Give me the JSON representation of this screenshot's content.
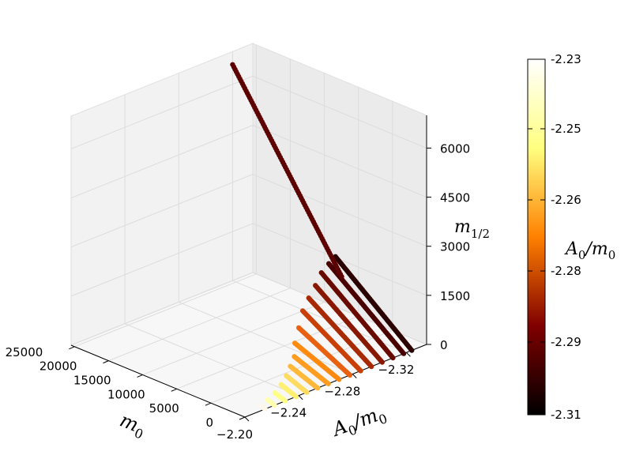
{
  "chart_data": {
    "type": "scatter",
    "projection": "3d",
    "x_axis": {
      "label_base": "m",
      "label_sub": "0",
      "ticks": [
        "25000",
        "20000",
        "15000",
        "10000",
        "5000",
        "0"
      ],
      "range": [
        0,
        25000
      ]
    },
    "y_axis": {
      "label_base": "A",
      "label_sub": "0",
      "label_tail": "/m",
      "label_tail_sub": "0",
      "ticks": [
        "−2.20",
        "−2.24",
        "−2.28",
        "−2.32"
      ],
      "range": [
        -2.2,
        -2.33
      ]
    },
    "z_axis": {
      "label_base": "m",
      "label_sub": "1/2",
      "ticks": [
        "0",
        "1500",
        "3000",
        "4500",
        "6000"
      ],
      "range": [
        0,
        7000
      ]
    },
    "colorbar": {
      "label_base": "A",
      "label_sub": "0",
      "label_tail": "/m",
      "label_tail_sub": "0",
      "ticks": [
        "-2.23",
        "-2.25",
        "-2.26",
        "-2.28",
        "-2.29",
        "-2.31"
      ],
      "range": [
        -2.31,
        -2.23
      ],
      "colormap": "afmhot"
    },
    "series": [
      {
        "y": -2.215,
        "m0_max": 600,
        "m12_max": 50,
        "color": "#fff8ea"
      },
      {
        "y": -2.222,
        "m0_max": 1000,
        "m12_max": 80,
        "color": "#ffffb0"
      },
      {
        "y": -2.23,
        "m0_max": 1500,
        "m12_max": 120,
        "color": "#ffff88"
      },
      {
        "y": -2.238,
        "m0_max": 2200,
        "m12_max": 180,
        "color": "#fff070"
      },
      {
        "y": -2.246,
        "m0_max": 3000,
        "m12_max": 250,
        "color": "#ffdc60"
      },
      {
        "y": -2.254,
        "m0_max": 4000,
        "m12_max": 320,
        "color": "#ffb838"
      },
      {
        "y": -2.262,
        "m0_max": 5000,
        "m12_max": 400,
        "color": "#ff9d20"
      },
      {
        "y": -2.27,
        "m0_max": 6500,
        "m12_max": 550,
        "color": "#ff8a10"
      },
      {
        "y": -2.278,
        "m0_max": 7500,
        "m12_max": 800,
        "color": "#e86010"
      },
      {
        "y": -2.286,
        "m0_max": 8500,
        "m12_max": 1100,
        "color": "#c84008"
      },
      {
        "y": -2.294,
        "m0_max": 9200,
        "m12_max": 1300,
        "color": "#a82a04"
      },
      {
        "y": -2.302,
        "m0_max": 9800,
        "m12_max": 1500,
        "color": "#881802"
      },
      {
        "y": -2.31,
        "m0_max": 10500,
        "m12_max": 1700,
        "color": "#680a00"
      },
      {
        "y": -2.318,
        "m0_max": 11000,
        "m12_max": 1800,
        "color": "#4a0000"
      },
      {
        "y": -2.324,
        "m0_max": 11200,
        "m12_max": 1900,
        "color": "#2a0000"
      },
      {
        "y": -2.32,
        "m0_max": 25500,
        "m12_max": 6600,
        "color": "#5c0202",
        "m0_min": 9500,
        "m12_min": 1500
      }
    ]
  }
}
